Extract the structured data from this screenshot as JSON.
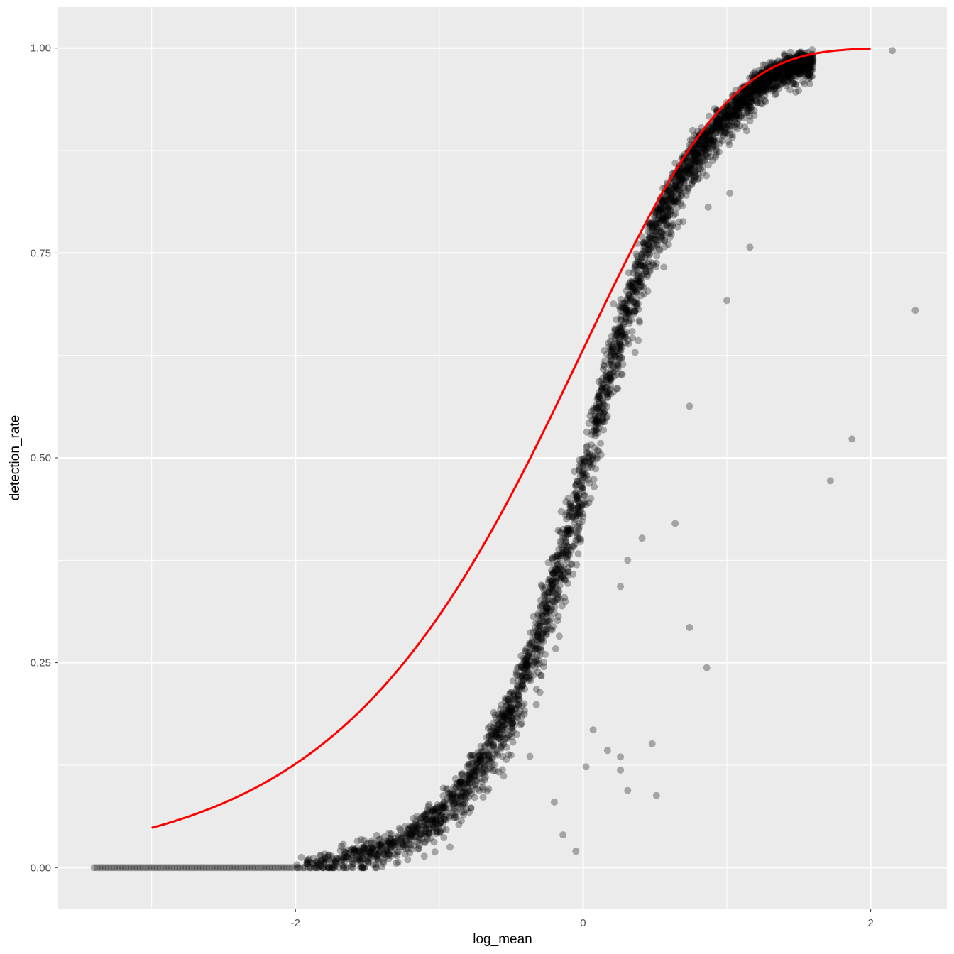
{
  "chart_data": {
    "type": "scatter",
    "title": "",
    "xlabel": "log_mean",
    "ylabel": "detection_rate",
    "xlim": [
      -3.65,
      2.53
    ],
    "ylim": [
      -0.05,
      1.05
    ],
    "x_ticks": [
      -2,
      0,
      2
    ],
    "x_tick_labels": [
      "-2",
      "0",
      "2"
    ],
    "y_ticks": [
      0.0,
      0.25,
      0.5,
      0.75,
      1.0
    ],
    "y_tick_labels": [
      "0.00",
      "0.25",
      "0.50",
      "0.75",
      "1.00"
    ],
    "grid": true,
    "legend": "none",
    "colors": {
      "panel_background": "#ebebeb",
      "grid": "#ffffff",
      "points": "#000000",
      "fitted_curve": "#ff0000"
    },
    "series": [
      {
        "type": "scatter",
        "opacity": 0.3,
        "main_trend": [
          [
            -3.4,
            0.0
          ],
          [
            -3.0,
            0.0
          ],
          [
            -2.5,
            0.003
          ],
          [
            -2.0,
            0.008
          ],
          [
            -1.75,
            0.015
          ],
          [
            -1.5,
            0.025
          ],
          [
            -1.25,
            0.045
          ],
          [
            -1.0,
            0.075
          ],
          [
            -0.75,
            0.13
          ],
          [
            -0.5,
            0.21
          ],
          [
            -0.375,
            0.27
          ],
          [
            -0.25,
            0.34
          ],
          [
            -0.125,
            0.42
          ],
          [
            0.0,
            0.5
          ],
          [
            0.125,
            0.59
          ],
          [
            0.25,
            0.67
          ],
          [
            0.5,
            0.8
          ],
          [
            0.75,
            0.88
          ],
          [
            1.0,
            0.93
          ],
          [
            1.25,
            0.97
          ],
          [
            1.5,
            0.99
          ]
        ],
        "outliers": [
          [
            2.15,
            0.997
          ],
          [
            2.31,
            0.68
          ],
          [
            1.87,
            0.523
          ],
          [
            1.72,
            0.472
          ],
          [
            1.16,
            0.757
          ],
          [
            1.02,
            0.823
          ],
          [
            1.0,
            0.692
          ],
          [
            0.87,
            0.806
          ],
          [
            0.86,
            0.244
          ],
          [
            0.74,
            0.563
          ],
          [
            0.74,
            0.293
          ],
          [
            0.64,
            0.42
          ],
          [
            0.51,
            0.088
          ],
          [
            0.48,
            0.151
          ],
          [
            0.41,
            0.402
          ],
          [
            0.31,
            0.375
          ],
          [
            0.31,
            0.094
          ],
          [
            0.26,
            0.119
          ],
          [
            0.26,
            0.135
          ],
          [
            0.26,
            0.343
          ],
          [
            0.17,
            0.143
          ],
          [
            0.07,
            0.168
          ],
          [
            0.02,
            0.123
          ],
          [
            -0.05,
            0.02
          ],
          [
            -0.14,
            0.04
          ],
          [
            -0.2,
            0.08
          ]
        ]
      },
      {
        "type": "line",
        "function": "1 - exp(-exp(log_mean))",
        "x_range": [
          -3.0,
          2.0
        ]
      }
    ]
  }
}
